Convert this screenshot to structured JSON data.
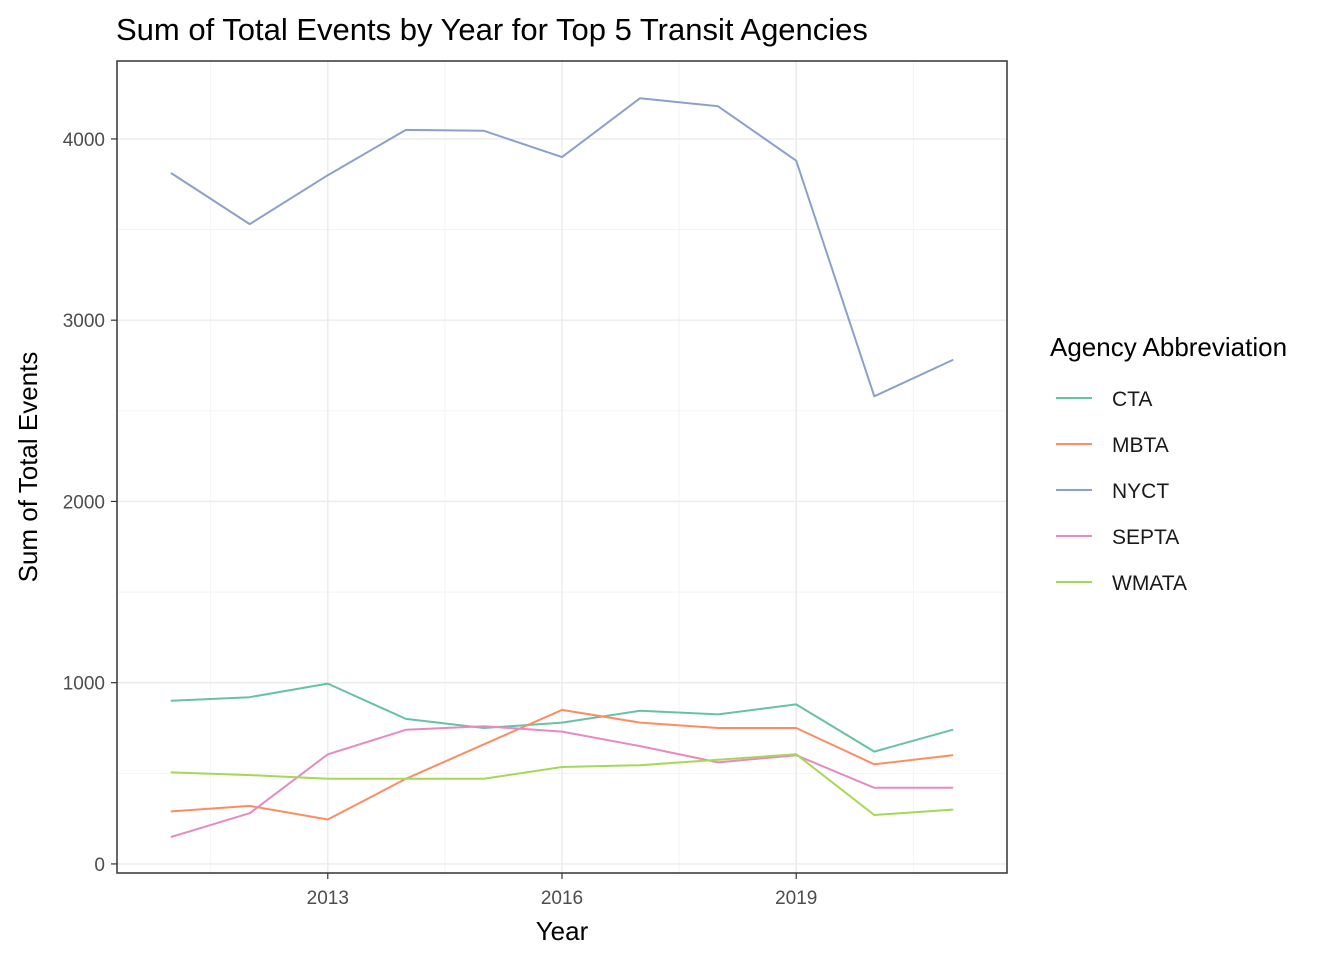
{
  "chart_data": {
    "type": "line",
    "title": "Sum of Total Events by Year for Top 5 Transit Agencies",
    "xlabel": "Year",
    "ylabel": "Sum of Total Events",
    "x": [
      2011,
      2012,
      2013,
      2014,
      2015,
      2016,
      2017,
      2018,
      2019,
      2020,
      2021
    ],
    "xlim": [
      2010.3,
      2021.7
    ],
    "ylim": [
      -50,
      4430
    ],
    "x_ticks": [
      2013,
      2016,
      2019
    ],
    "x_tick_labels": [
      "2013",
      "2016",
      "2019"
    ],
    "y_ticks": [
      0,
      1000,
      2000,
      3000,
      4000
    ],
    "y_tick_labels": [
      "0",
      "1000",
      "2000",
      "3000",
      "4000"
    ],
    "grid": true,
    "legend": {
      "title": "Agency Abbreviation",
      "placement": "right"
    },
    "series": [
      {
        "name": "CTA",
        "color": "#66c2a5",
        "values": [
          900,
          920,
          995,
          800,
          750,
          780,
          845,
          825,
          880,
          620,
          740
        ]
      },
      {
        "name": "MBTA",
        "color": "#fc8d62",
        "values": [
          290,
          320,
          245,
          470,
          660,
          850,
          780,
          750,
          750,
          550,
          600
        ]
      },
      {
        "name": "NYCT",
        "color": "#8da0cb",
        "values": [
          3810,
          3530,
          3800,
          4050,
          4045,
          3900,
          4225,
          4180,
          3880,
          2580,
          2780
        ]
      },
      {
        "name": "SEPTA",
        "color": "#e78ac3",
        "values": [
          150,
          280,
          605,
          740,
          760,
          730,
          650,
          560,
          600,
          420,
          420
        ]
      },
      {
        "name": "WMATA",
        "color": "#a6d854",
        "values": [
          505,
          490,
          470,
          470,
          470,
          535,
          545,
          575,
          605,
          270,
          300
        ]
      }
    ]
  }
}
